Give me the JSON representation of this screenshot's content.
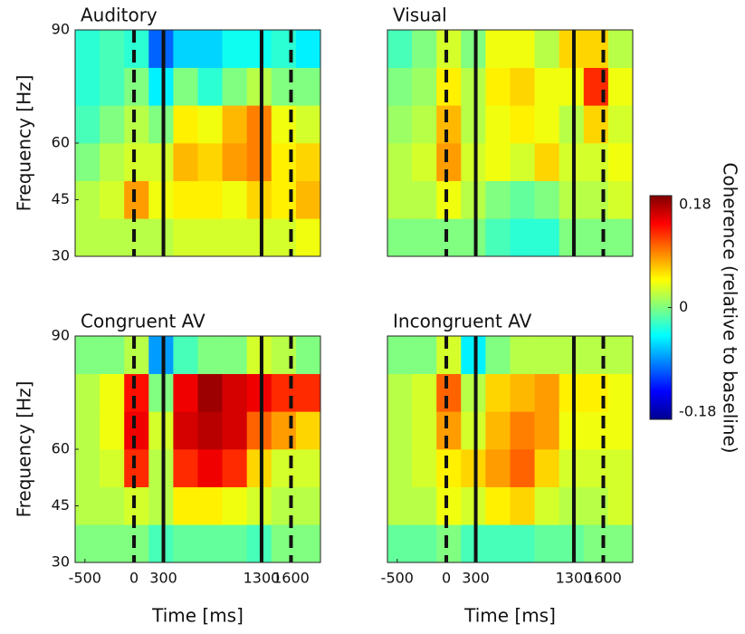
{
  "chart_data": [
    {
      "type": "heatmap",
      "title": "Auditory",
      "ylabel": "Frequency [Hz]",
      "xlim": [
        -600,
        1900
      ],
      "ylim": [
        30,
        90
      ],
      "yticks": [
        30,
        45,
        60,
        90
      ],
      "xbins": [
        -600,
        -350,
        -100,
        150,
        400,
        650,
        900,
        1150,
        1400,
        1650,
        1900
      ],
      "ybins": [
        30,
        40,
        50,
        60,
        70,
        80,
        90
      ],
      "events": [
        {
          "x": 0,
          "style": "dashed"
        },
        {
          "x": 300,
          "style": "solid"
        },
        {
          "x": 1300,
          "style": "solid"
        },
        {
          "x": 1600,
          "style": "dashed"
        }
      ],
      "values": [
        [
          0.02,
          0.02,
          0.02,
          0.02,
          0.03,
          0.03,
          0.03,
          0.03,
          0.03,
          0.04
        ],
        [
          0.02,
          0.03,
          0.08,
          0.04,
          0.05,
          0.05,
          0.04,
          0.06,
          0.05,
          0.07
        ],
        [
          0.0,
          0.02,
          0.03,
          0.03,
          0.07,
          0.06,
          0.08,
          0.09,
          0.05,
          0.06
        ],
        [
          -0.02,
          0.0,
          0.02,
          0.0,
          0.05,
          0.04,
          0.07,
          0.09,
          0.04,
          0.03
        ],
        [
          -0.03,
          -0.02,
          0.0,
          -0.05,
          0.0,
          -0.03,
          0.0,
          0.02,
          0.0,
          0.0
        ],
        [
          -0.03,
          -0.02,
          -0.03,
          -0.1,
          -0.06,
          -0.06,
          -0.04,
          -0.04,
          -0.03,
          -0.05
        ]
      ]
    },
    {
      "type": "heatmap",
      "title": "Visual",
      "xlim": [
        -600,
        1900
      ],
      "ylim": [
        30,
        90
      ],
      "xbins": [
        -600,
        -350,
        -100,
        150,
        400,
        650,
        900,
        1150,
        1400,
        1650,
        1900
      ],
      "ybins": [
        30,
        40,
        50,
        60,
        70,
        80,
        90
      ],
      "events": [
        {
          "x": 0,
          "style": "dashed"
        },
        {
          "x": 300,
          "style": "solid"
        },
        {
          "x": 1300,
          "style": "solid"
        },
        {
          "x": 1600,
          "style": "dashed"
        }
      ],
      "values": [
        [
          0.0,
          0.0,
          0.0,
          0.0,
          -0.02,
          -0.03,
          -0.03,
          0.0,
          0.0,
          0.0
        ],
        [
          0.02,
          0.02,
          0.04,
          0.02,
          0.0,
          -0.01,
          0.0,
          0.02,
          0.02,
          0.03
        ],
        [
          0.02,
          0.03,
          0.08,
          0.03,
          0.04,
          0.03,
          0.06,
          0.03,
          0.03,
          0.04
        ],
        [
          0.01,
          0.02,
          0.07,
          0.02,
          0.04,
          0.05,
          0.04,
          0.02,
          0.06,
          0.03
        ],
        [
          0.0,
          0.01,
          0.05,
          0.02,
          0.05,
          0.06,
          0.04,
          0.04,
          0.12,
          0.04
        ],
        [
          -0.02,
          0.0,
          0.03,
          0.0,
          0.04,
          0.04,
          0.02,
          0.06,
          0.06,
          0.02
        ]
      ]
    },
    {
      "type": "heatmap",
      "title": "Congruent AV",
      "ylabel": "Frequency [Hz]",
      "xlabel": "Time [ms]",
      "xlim": [
        -600,
        1900
      ],
      "ylim": [
        30,
        90
      ],
      "yticks": [
        30,
        45,
        60,
        90
      ],
      "xticks": [
        -500,
        0,
        300,
        1300,
        1600
      ],
      "xbins": [
        -600,
        -350,
        -100,
        150,
        400,
        650,
        900,
        1150,
        1400,
        1650,
        1900
      ],
      "ybins": [
        30,
        40,
        50,
        60,
        70,
        80,
        90
      ],
      "events": [
        {
          "x": 0,
          "style": "dashed"
        },
        {
          "x": 300,
          "style": "solid"
        },
        {
          "x": 1300,
          "style": "solid"
        },
        {
          "x": 1600,
          "style": "dashed"
        }
      ],
      "values": [
        [
          0.0,
          0.0,
          0.0,
          -0.02,
          -0.01,
          -0.01,
          -0.01,
          -0.02,
          0.0,
          0.0
        ],
        [
          0.02,
          0.02,
          0.03,
          0.02,
          0.05,
          0.05,
          0.04,
          0.03,
          0.02,
          0.02
        ],
        [
          0.02,
          0.03,
          0.12,
          0.02,
          0.12,
          0.14,
          0.12,
          0.06,
          0.03,
          0.03
        ],
        [
          0.02,
          0.04,
          0.14,
          0.03,
          0.15,
          0.16,
          0.15,
          0.1,
          0.08,
          0.06
        ],
        [
          0.02,
          0.04,
          0.13,
          0.0,
          0.14,
          0.17,
          0.15,
          0.14,
          0.12,
          0.12
        ],
        [
          0.0,
          0.0,
          0.02,
          -0.08,
          -0.02,
          0.0,
          0.0,
          0.03,
          0.02,
          0.0
        ]
      ]
    },
    {
      "type": "heatmap",
      "title": "Incongruent AV",
      "xlabel": "Time [ms]",
      "xlim": [
        -600,
        1900
      ],
      "ylim": [
        30,
        90
      ],
      "xticks": [
        -500,
        0,
        300,
        1300,
        1600
      ],
      "xbins": [
        -600,
        -350,
        -100,
        150,
        400,
        650,
        900,
        1150,
        1400,
        1650,
        1900
      ],
      "ybins": [
        30,
        40,
        50,
        60,
        70,
        80,
        90
      ],
      "events": [
        {
          "x": 0,
          "style": "dashed"
        },
        {
          "x": 300,
          "style": "solid"
        },
        {
          "x": 1300,
          "style": "solid"
        },
        {
          "x": 1600,
          "style": "dashed"
        }
      ],
      "values": [
        [
          -0.01,
          -0.01,
          0.0,
          -0.02,
          -0.02,
          -0.02,
          -0.01,
          -0.01,
          0.0,
          0.0
        ],
        [
          0.02,
          0.02,
          0.04,
          0.03,
          0.05,
          0.06,
          0.03,
          0.02,
          0.02,
          0.03
        ],
        [
          0.02,
          0.03,
          0.05,
          0.06,
          0.08,
          0.1,
          0.06,
          0.03,
          0.03,
          0.03
        ],
        [
          0.02,
          0.03,
          0.08,
          0.03,
          0.07,
          0.09,
          0.08,
          0.04,
          0.04,
          0.04
        ],
        [
          0.02,
          0.03,
          0.1,
          0.02,
          0.06,
          0.07,
          0.08,
          0.05,
          0.05,
          0.04
        ],
        [
          0.0,
          0.0,
          0.03,
          -0.05,
          0.0,
          0.02,
          0.02,
          0.02,
          0.02,
          0.02
        ]
      ]
    }
  ],
  "colorbar": {
    "label": "Coherence (relative to baseline)",
    "lim": [
      -0.18,
      0.18
    ],
    "ticks": [
      -0.18,
      0,
      0.18
    ],
    "colormap": "jet"
  }
}
